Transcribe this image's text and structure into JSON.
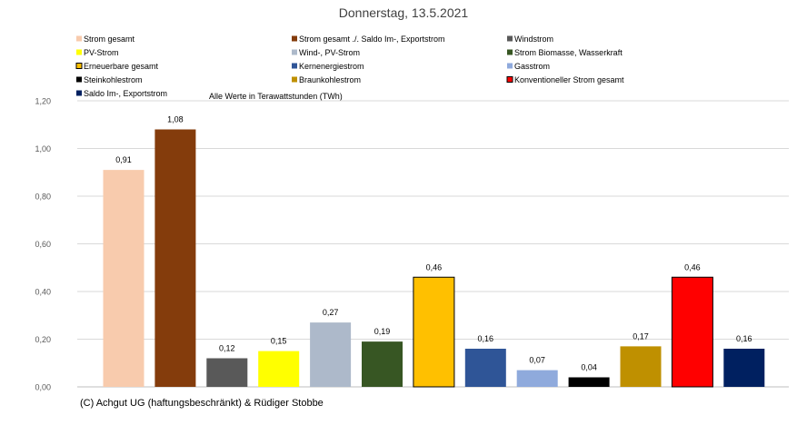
{
  "chart_data": {
    "type": "bar",
    "title": "Donnerstag, 13.5.2021",
    "subtitle": "Alle Werte in Terawattstunden (TWh)",
    "footer": "(C) Achgut UG (haftungsbeschränkt) & Rüdiger Stobbe",
    "ylim": [
      0,
      1.2
    ],
    "y_ticks": [
      "0,00",
      "0,20",
      "0,40",
      "0,60",
      "0,80",
      "1,00",
      "1,20"
    ],
    "grid": true,
    "legend_position": "top",
    "series": [
      {
        "name": "Strom gesamt",
        "value": 0.91,
        "label": "0,91",
        "color": "#f8cbad",
        "outlined": false
      },
      {
        "name": "Strom gesamt ./. Saldo Im-, Exportstrom",
        "value": 1.08,
        "label": "1,08",
        "color": "#843c0c",
        "outlined": false
      },
      {
        "name": "Windstrom",
        "value": 0.12,
        "label": "0,12",
        "color": "#595959",
        "outlined": false
      },
      {
        "name": "PV-Strom",
        "value": 0.15,
        "label": "0,15",
        "color": "#ffff00",
        "outlined": false
      },
      {
        "name": "Wind-, PV-Strom",
        "value": 0.27,
        "label": "0,27",
        "color": "#adb9ca",
        "outlined": false
      },
      {
        "name": "Strom Biomasse, Wasserkraft",
        "value": 0.19,
        "label": "0,19",
        "color": "#375623",
        "outlined": false
      },
      {
        "name": "Erneuerbare gesamt",
        "value": 0.46,
        "label": "0,46",
        "color": "#ffc000",
        "outlined": true
      },
      {
        "name": "Kernenergiestrom",
        "value": 0.16,
        "label": "0,16",
        "color": "#2f5597",
        "outlined": false
      },
      {
        "name": "Gasstrom",
        "value": 0.07,
        "label": "0,07",
        "color": "#8faadc",
        "outlined": false
      },
      {
        "name": "Steinkohlestrom",
        "value": 0.04,
        "label": "0,04",
        "color": "#000000",
        "outlined": false
      },
      {
        "name": "Braunkohlestrom",
        "value": 0.17,
        "label": "0,17",
        "color": "#bf9000",
        "outlined": false
      },
      {
        "name": "Konventioneller Strom gesamt",
        "value": 0.46,
        "label": "0,46",
        "color": "#ff0000",
        "outlined": true
      },
      {
        "name": "Saldo Im-, Exportstrom",
        "value": 0.16,
        "label": "0,16",
        "color": "#002060",
        "outlined": false
      }
    ]
  }
}
